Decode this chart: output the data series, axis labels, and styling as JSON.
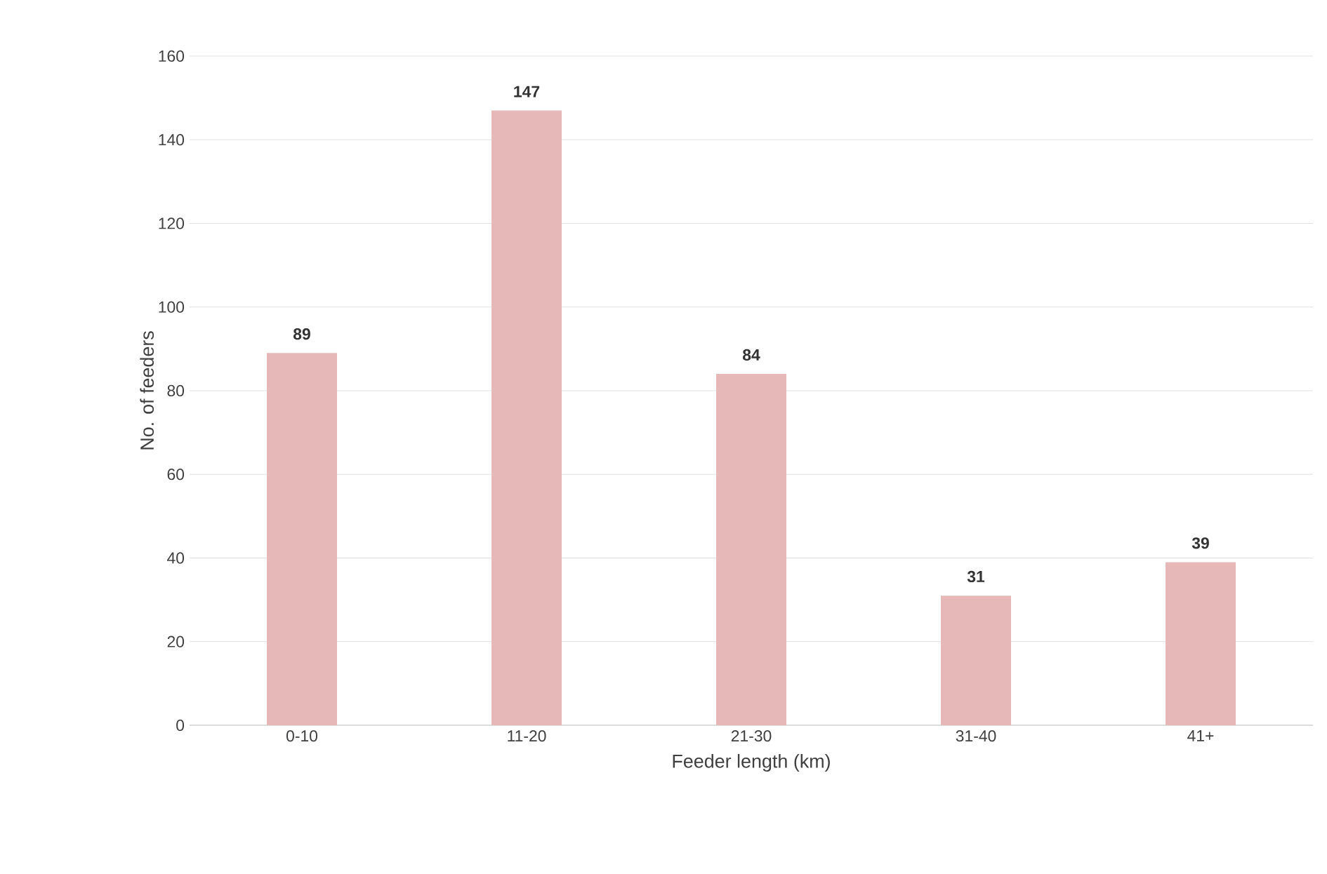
{
  "chart_data": {
    "type": "bar",
    "xlabel": "Feeder length (km)",
    "ylabel": "No. of feeders",
    "categories": [
      "0-10",
      "11-20",
      "21-30",
      "31-40",
      "41+"
    ],
    "values": [
      89,
      147,
      84,
      31,
      39
    ],
    "color": "#e6b8b7",
    "ylim": [
      0,
      160
    ],
    "yticks": [
      0,
      20,
      40,
      60,
      80,
      100,
      120,
      140,
      160
    ],
    "grid": "y",
    "data_labels": true
  }
}
